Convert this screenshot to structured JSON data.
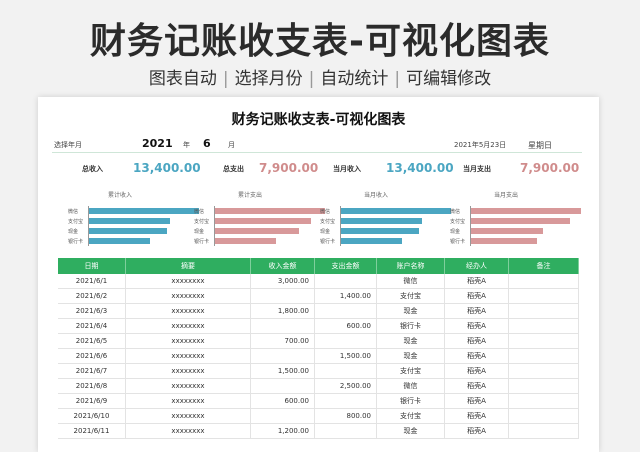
{
  "banner": {
    "title": "财务记账收支表-可视化图表",
    "subtitle_items": [
      "图表自动",
      "选择月份",
      "自动统计",
      "可编辑修改"
    ],
    "separator": "|"
  },
  "sheet": {
    "title": "财务记账收支表-可视化图表",
    "select_year_label": "选择年月",
    "year_value": "2021",
    "year_unit": "年",
    "month_value": "6",
    "month_unit": "月",
    "date_text": "2021年5月23日",
    "weekday": "星期日"
  },
  "stats": {
    "total_income_label": "总收入",
    "total_income_value": "13,400.00",
    "total_expense_label": "总支出",
    "total_expense_value": "7,900.00",
    "month_income_label": "当月收入",
    "month_income_value": "13,400.00",
    "month_expense_label": "当月支出",
    "month_expense_value": "7,900.00"
  },
  "mini_charts": [
    {
      "title": "累计收入",
      "color": "#4ba6c2",
      "categories": [
        "微信",
        "支付宝",
        "现金",
        "银行卡"
      ],
      "values": [
        1.0,
        0.74,
        0.71,
        0.55
      ]
    },
    {
      "title": "累计支出",
      "color": "#d8999a",
      "categories": [
        "微信",
        "支付宝",
        "现金",
        "银行卡"
      ],
      "values": [
        1.0,
        0.87,
        0.76,
        0.55
      ]
    },
    {
      "title": "当月收入",
      "color": "#4ba6c2",
      "categories": [
        "微信",
        "支付宝",
        "现金",
        "银行卡"
      ],
      "values": [
        1.0,
        0.74,
        0.71,
        0.55
      ]
    },
    {
      "title": "当月支出",
      "color": "#d8999a",
      "categories": [
        "微信",
        "支付宝",
        "现金",
        "银行卡"
      ],
      "values": [
        1.0,
        0.9,
        0.65,
        0.6
      ]
    }
  ],
  "table": {
    "headers": [
      "日期",
      "摘要",
      "收入金额",
      "支出金额",
      "账户名称",
      "经办人",
      "备注"
    ],
    "rows": [
      [
        "2021/6/1",
        "xxxxxxxx",
        "3,000.00",
        "",
        "微信",
        "稻壳A",
        ""
      ],
      [
        "2021/6/2",
        "xxxxxxxx",
        "",
        "1,400.00",
        "支付宝",
        "稻壳A",
        ""
      ],
      [
        "2021/6/3",
        "xxxxxxxx",
        "1,800.00",
        "",
        "现金",
        "稻壳A",
        ""
      ],
      [
        "2021/6/4",
        "xxxxxxxx",
        "",
        "600.00",
        "银行卡",
        "稻壳A",
        ""
      ],
      [
        "2021/6/5",
        "xxxxxxxx",
        "700.00",
        "",
        "现金",
        "稻壳A",
        ""
      ],
      [
        "2021/6/6",
        "xxxxxxxx",
        "",
        "1,500.00",
        "现金",
        "稻壳A",
        ""
      ],
      [
        "2021/6/7",
        "xxxxxxxx",
        "1,500.00",
        "",
        "支付宝",
        "稻壳A",
        ""
      ],
      [
        "2021/6/8",
        "xxxxxxxx",
        "",
        "2,500.00",
        "微信",
        "稻壳A",
        ""
      ],
      [
        "2021/6/9",
        "xxxxxxxx",
        "600.00",
        "",
        "银行卡",
        "稻壳A",
        ""
      ],
      [
        "2021/6/10",
        "xxxxxxxx",
        "",
        "800.00",
        "支付宝",
        "稻壳A",
        ""
      ],
      [
        "2021/6/11",
        "xxxxxxxx",
        "1,200.00",
        "",
        "现金",
        "稻壳A",
        ""
      ]
    ]
  }
}
